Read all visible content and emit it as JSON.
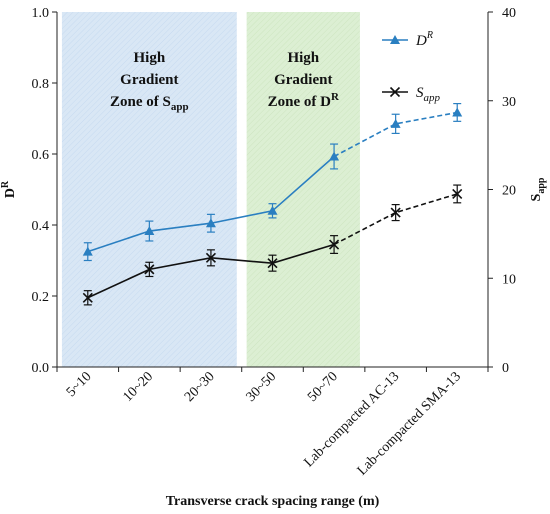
{
  "colors": {
    "dr": "#2a7fc1",
    "sapp": "#111111",
    "zone_blue": "#d9e7f5",
    "zone_green": "#dcefd3"
  },
  "chart_data": {
    "type": "line",
    "categories": [
      "5~10",
      "10~20",
      "20~30",
      "30~50",
      "50~70",
      "Lab-compacted AC-13",
      "Lab-compacted SMA-13"
    ],
    "xlabel": "Transverse crack spacing range (m)",
    "ylabel_left": "D",
    "ylabel_left_sup": "R",
    "ylabel_right": "S",
    "ylabel_right_sub": "app",
    "ylim_left": [
      0.0,
      1.0
    ],
    "yticks_left": [
      "0.0",
      "0.2",
      "0.4",
      "0.6",
      "0.8",
      "1.0"
    ],
    "ylim_right": [
      0,
      40
    ],
    "yticks_right": [
      "0",
      "10",
      "20",
      "30",
      "40"
    ],
    "grid": false,
    "legend_position": "top-right",
    "series": [
      {
        "key": "dr",
        "name": "D",
        "name_sup": "R",
        "axis": "left",
        "marker": "triangle",
        "values": [
          0.325,
          0.383,
          0.405,
          0.44,
          0.593,
          0.685,
          0.717
        ],
        "errors": [
          0.025,
          0.028,
          0.025,
          0.02,
          0.035,
          0.027,
          0.025
        ],
        "dashed_from_index": 4
      },
      {
        "key": "sapp",
        "name": "S",
        "name_sub": "app",
        "axis": "right",
        "marker": "x",
        "values": [
          7.8,
          11.0,
          12.3,
          11.7,
          13.8,
          17.4,
          19.5
        ],
        "errors": [
          0.8,
          0.8,
          0.9,
          0.9,
          1.0,
          0.9,
          1.0
        ],
        "dashed_from_index": 4
      }
    ],
    "zones": [
      {
        "key": "blue",
        "from_category": 0,
        "to_category": 2,
        "lines": [
          "High",
          "Gradient",
          "Zone of S"
        ],
        "last_line_sub": "app"
      },
      {
        "key": "green",
        "from_category": 3,
        "to_category": 4,
        "lines": [
          "High",
          "Gradient",
          "Zone of D"
        ],
        "last_line_sup": "R"
      }
    ]
  }
}
